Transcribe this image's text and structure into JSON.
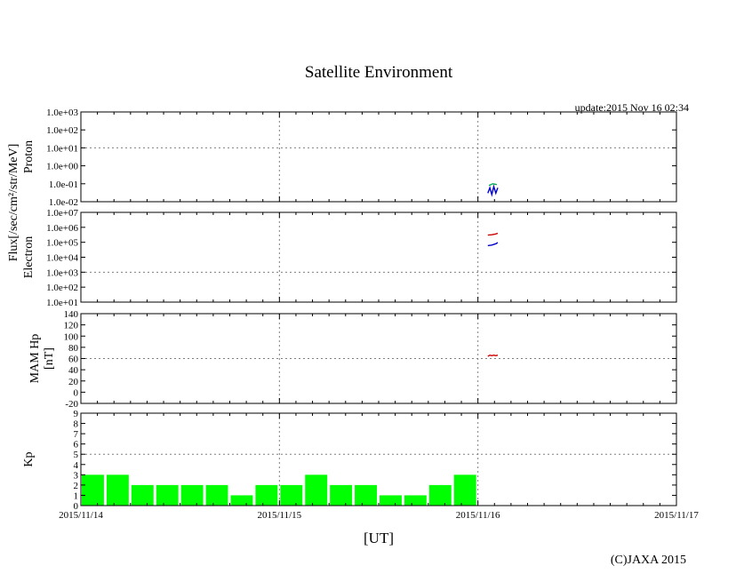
{
  "title": "Satellite Environment",
  "update_text": "update:2015 Nov 16 02:34",
  "copyright": "(C)JAXA 2015",
  "xlabel": "[UT]",
  "shared_ylabel": "Flux[/sec/cm²/str/MeV]",
  "x_ticks": [
    "2015/11/14",
    "2015/11/15",
    "2015/11/16",
    "2015/11/17"
  ],
  "colors": {
    "kp_bar": "#00ff00",
    "series_blue": "#0000cc",
    "series_red": "#cc0000",
    "series_green": "#00aa55"
  },
  "chart_data": [
    {
      "type": "line",
      "id": "proton",
      "ylabel": "Proton",
      "yscale": "log",
      "ylim": [
        0.01,
        1000
      ],
      "y_tick_labels": [
        "1.0e-02",
        "1.0e-01",
        "1.0e+00",
        "1.0e+01",
        "1.0e+02",
        "1.0e+03"
      ],
      "y_grid_dotted": [
        10
      ],
      "x_range_days": [
        0,
        3
      ],
      "series": [
        {
          "color": "blue",
          "x": [
            2.05,
            2.06,
            2.07,
            2.08,
            2.09,
            2.1
          ],
          "y": [
            0.03,
            0.06,
            0.025,
            0.07,
            0.03,
            0.06
          ]
        },
        {
          "color": "green",
          "x": [
            2.055,
            2.075,
            2.095
          ],
          "y": [
            0.08,
            0.1,
            0.09
          ]
        }
      ]
    },
    {
      "type": "line",
      "id": "electron",
      "ylabel": "Electron",
      "yscale": "log",
      "ylim": [
        10,
        10000000
      ],
      "y_tick_labels": [
        "1.0e+01",
        "1.0e+02",
        "1.0e+03",
        "1.0e+04",
        "1.0e+05",
        "1.0e+06",
        "1.0e+07"
      ],
      "y_grid_dotted": [
        1000
      ],
      "x_range_days": [
        0,
        3
      ],
      "series": [
        {
          "color": "red",
          "x": [
            2.05,
            2.07,
            2.09,
            2.1
          ],
          "y": [
            300000,
            320000,
            360000,
            400000
          ]
        },
        {
          "color": "blue",
          "x": [
            2.05,
            2.07,
            2.09,
            2.1
          ],
          "y": [
            60000,
            65000,
            80000,
            95000
          ]
        }
      ]
    },
    {
      "type": "line",
      "id": "mam",
      "ylabel": "MAM Hp",
      "ylabel2": "[nT]",
      "yscale": "linear",
      "ylim": [
        -20,
        140
      ],
      "y_tick_labels": [
        "-20",
        "0",
        "20",
        "40",
        "60",
        "80",
        "100",
        "120",
        "140"
      ],
      "y_grid_dotted": [
        60
      ],
      "x_range_days": [
        0,
        3
      ],
      "series": [
        {
          "color": "red",
          "x": [
            2.05,
            2.06,
            2.07,
            2.08,
            2.09,
            2.1
          ],
          "y": [
            64,
            66,
            65,
            66,
            65,
            66
          ]
        }
      ]
    },
    {
      "type": "bar",
      "id": "kp",
      "ylabel": "Kp",
      "ylim": [
        0,
        9
      ],
      "y_tick_labels": [
        "0",
        "1",
        "2",
        "3",
        "4",
        "5",
        "6",
        "7",
        "8",
        "9"
      ],
      "y_grid_dotted": [
        5
      ],
      "x_range_days": [
        0,
        3
      ],
      "bar_width_days": 0.125,
      "values": [
        3,
        3,
        2,
        2,
        2,
        2,
        1,
        2,
        2,
        3,
        2,
        2,
        1,
        1,
        2,
        3
      ]
    }
  ]
}
